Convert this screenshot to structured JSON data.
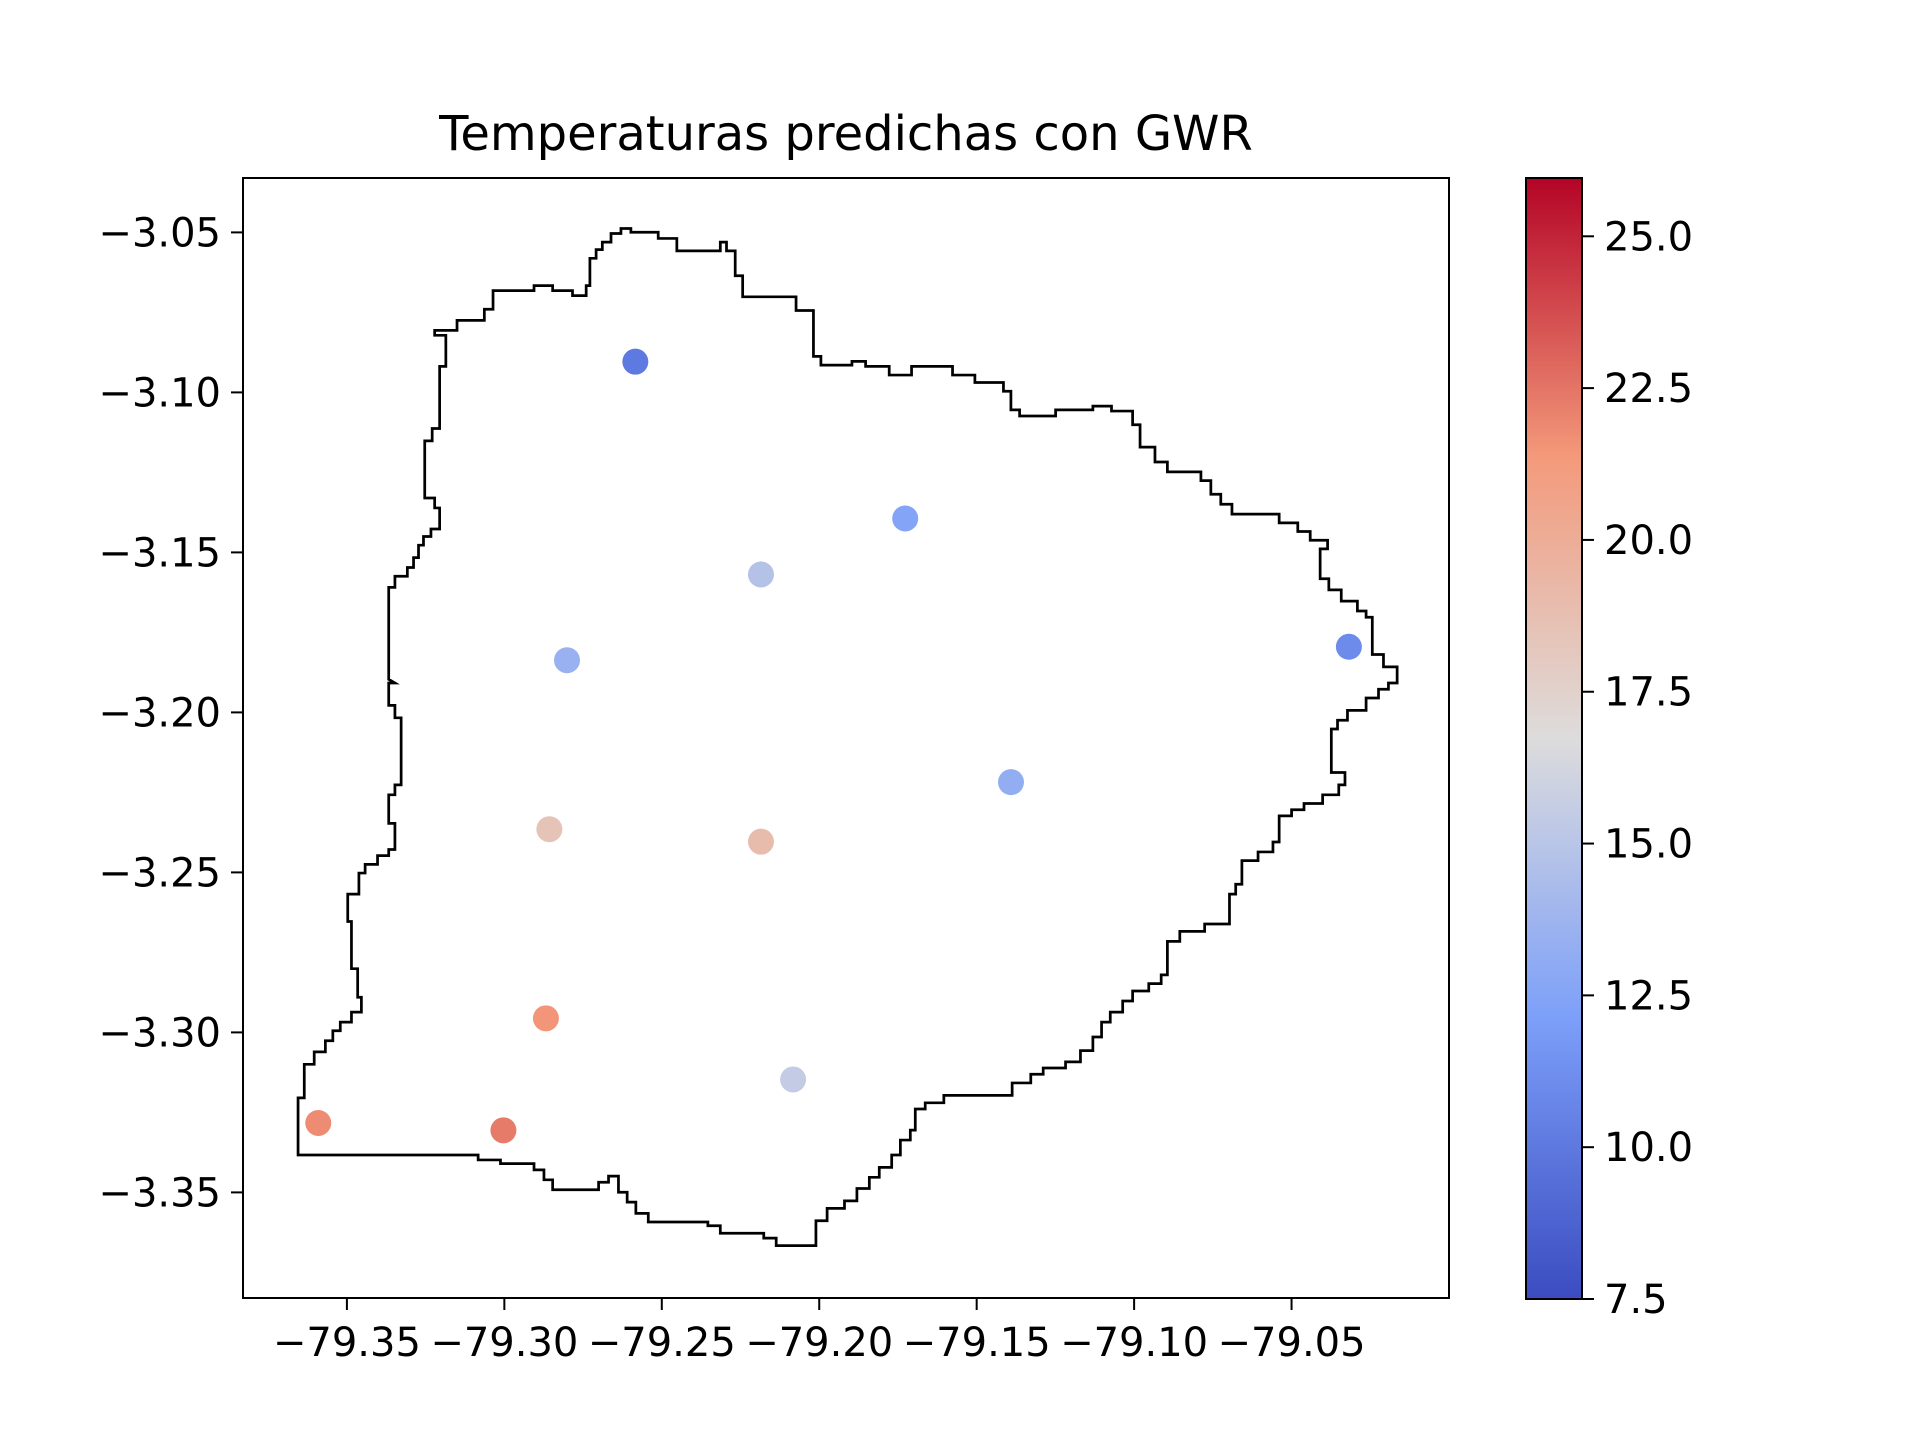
{
  "chart_data": {
    "type": "scatter",
    "title": "Temperaturas predichas con GWR",
    "x": [
      -79.2584,
      -79.1727,
      -79.2185,
      -79.2801,
      -79.0318,
      -79.1391,
      -79.2857,
      -79.2185,
      -79.2868,
      -79.2083,
      -79.3591,
      -79.3003
    ],
    "values": [
      -3.0904,
      -3.1394,
      -3.1569,
      -3.1837,
      -3.1795,
      -3.2218,
      -3.2365,
      -3.2404,
      -3.2956,
      -3.3147,
      -3.3283,
      -3.3306
    ],
    "color_values": [
      10.0,
      12.5,
      14.8,
      13.5,
      11.0,
      13.2,
      18.5,
      19.0,
      21.5,
      15.5,
      21.8,
      22.3
    ],
    "colormap": "coolwarm",
    "xlim": [
      -79.383,
      -79.0
    ],
    "ylim": [
      -3.383,
      -3.033
    ],
    "xticks": [
      {
        "value": -79.35,
        "label": "−79.35"
      },
      {
        "value": -79.3,
        "label": "−79.30"
      },
      {
        "value": -79.25,
        "label": "−79.25"
      },
      {
        "value": -79.2,
        "label": "−79.20"
      },
      {
        "value": -79.15,
        "label": "−79.15"
      },
      {
        "value": -79.1,
        "label": "−79.10"
      },
      {
        "value": -79.05,
        "label": "−79.05"
      }
    ],
    "yticks": [
      {
        "value": -3.05,
        "label": "−3.05"
      },
      {
        "value": -3.1,
        "label": "−3.10"
      },
      {
        "value": -3.15,
        "label": "−3.15"
      },
      {
        "value": -3.2,
        "label": "−3.20"
      },
      {
        "value": -3.25,
        "label": "−3.25"
      },
      {
        "value": -3.3,
        "label": "−3.30"
      },
      {
        "value": -3.35,
        "label": "−3.35"
      }
    ],
    "clim": [
      7.5,
      25.96
    ],
    "cticks": [
      7.5,
      {
        "value": 10,
        "label": "10.0"
      },
      12.5,
      {
        "value": 15,
        "label": "15.0"
      },
      17.5,
      {
        "value": 20,
        "label": "20.0"
      },
      22.5,
      {
        "value": 25,
        "label": "25.0"
      }
    ]
  }
}
